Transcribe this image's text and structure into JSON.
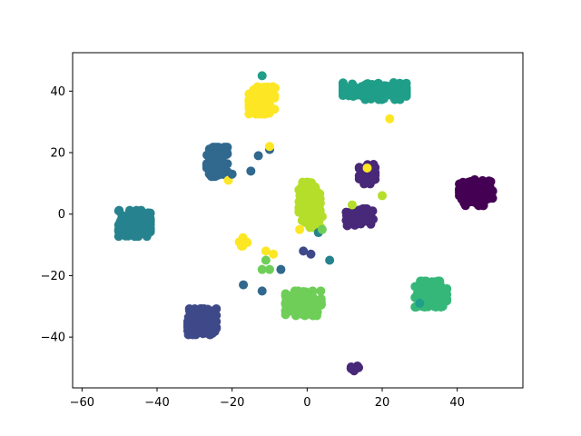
{
  "chart_data": {
    "type": "scatter",
    "title": "",
    "xlabel": "",
    "ylabel": "",
    "xlim": [
      -62.5,
      57.5
    ],
    "ylim": [
      -56.5,
      52.5
    ],
    "xticks": [
      -60,
      -40,
      -20,
      0,
      20,
      40
    ],
    "yticks": [
      -40,
      -20,
      0,
      20,
      40
    ],
    "grid": false,
    "legend": "none",
    "colormap": "viridis",
    "clusters": [
      {
        "label": 0,
        "color": "#440154",
        "center": [
          45,
          7
        ],
        "spread": [
          4.2,
          4.0
        ],
        "count": 150
      },
      {
        "label": 1,
        "color": "#482878",
        "center": [
          14,
          -1
        ],
        "spread": [
          3.4,
          2.6
        ],
        "count": 85
      },
      {
        "label": 1,
        "color": "#482878",
        "center": [
          16,
          13
        ],
        "spread": [
          2.0,
          3.0
        ],
        "count": 40
      },
      {
        "label": 1,
        "color": "#482878",
        "center": [
          13,
          -50
        ],
        "spread": [
          1.2,
          1.0
        ],
        "count": 12
      },
      {
        "label": 2,
        "color": "#3e4989",
        "center": [
          -28,
          -35
        ],
        "spread": [
          3.6,
          4.0
        ],
        "count": 120
      },
      {
        "label": 3,
        "color": "#31688e",
        "center": [
          -24,
          17
        ],
        "spread": [
          2.6,
          4.5
        ],
        "count": 100
      },
      {
        "label": 4,
        "color": "#26828e",
        "center": [
          -46,
          -3
        ],
        "spread": [
          4.0,
          4.0
        ],
        "count": 100
      },
      {
        "label": 5,
        "color": "#1f9e89",
        "center": [
          18,
          40
        ],
        "spread": [
          8.0,
          2.6
        ],
        "count": 110
      },
      {
        "label": 6,
        "color": "#35b779",
        "center": [
          33,
          -26
        ],
        "spread": [
          4.0,
          4.0
        ],
        "count": 120
      },
      {
        "label": 7,
        "color": "#6ece58",
        "center": [
          -1,
          -29
        ],
        "spread": [
          4.5,
          3.8
        ],
        "count": 130
      },
      {
        "label": 8,
        "color": "#b5de2b",
        "center": [
          1,
          3
        ],
        "spread": [
          3.0,
          7.0
        ],
        "count": 130
      },
      {
        "label": 9,
        "color": "#fde725",
        "center": [
          -12,
          37
        ],
        "spread": [
          3.3,
          4.2
        ],
        "count": 130
      },
      {
        "label": 9,
        "color": "#fde725",
        "center": [
          -17,
          -9
        ],
        "spread": [
          1.0,
          1.3
        ],
        "count": 10
      }
    ],
    "outliers": [
      {
        "x": -12,
        "y": 45,
        "color": "#1f9e89"
      },
      {
        "x": -10,
        "y": 21,
        "color": "#31688e"
      },
      {
        "x": -13,
        "y": 19,
        "color": "#31688e"
      },
      {
        "x": -15,
        "y": 14,
        "color": "#31688e"
      },
      {
        "x": -10,
        "y": 22,
        "color": "#fde725"
      },
      {
        "x": -7,
        "y": -18,
        "color": "#31688e"
      },
      {
        "x": -12,
        "y": -25,
        "color": "#31688e"
      },
      {
        "x": -17,
        "y": -23,
        "color": "#31688e"
      },
      {
        "x": -1,
        "y": -12,
        "color": "#3e4989"
      },
      {
        "x": 1,
        "y": -13,
        "color": "#3e4989"
      },
      {
        "x": 6,
        "y": -15,
        "color": "#26828e"
      },
      {
        "x": 3,
        "y": -6,
        "color": "#26828e"
      },
      {
        "x": -11,
        "y": -12,
        "color": "#fde725"
      },
      {
        "x": -9,
        "y": -13,
        "color": "#fde725"
      },
      {
        "x": -12,
        "y": -18,
        "color": "#6ece58"
      },
      {
        "x": -10,
        "y": -18,
        "color": "#6ece58"
      },
      {
        "x": -11,
        "y": -15,
        "color": "#6ece58"
      },
      {
        "x": 22,
        "y": 31,
        "color": "#fde725"
      },
      {
        "x": 20,
        "y": 6,
        "color": "#b5de2b"
      },
      {
        "x": 12,
        "y": 3,
        "color": "#b5de2b"
      },
      {
        "x": 16,
        "y": 15,
        "color": "#fde725"
      },
      {
        "x": -21,
        "y": 11,
        "color": "#fde725"
      },
      {
        "x": -20,
        "y": 13,
        "color": "#31688e"
      },
      {
        "x": 30,
        "y": -29,
        "color": "#1f9e89"
      },
      {
        "x": -2,
        "y": -5,
        "color": "#fde725"
      },
      {
        "x": 4,
        "y": -5,
        "color": "#6ece58"
      }
    ]
  }
}
